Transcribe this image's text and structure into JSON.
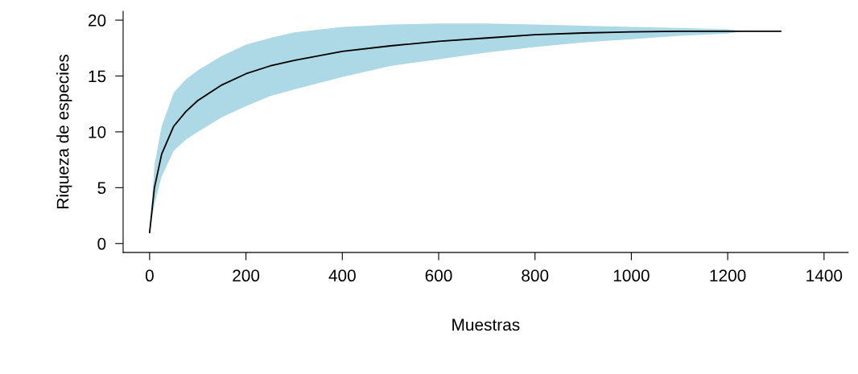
{
  "chart_data": {
    "type": "line",
    "xlabel": "Muestras",
    "ylabel": "Riqueza de especies",
    "x": [
      0,
      10,
      25,
      50,
      75,
      100,
      150,
      200,
      250,
      300,
      400,
      500,
      600,
      700,
      800,
      900,
      1000,
      1100,
      1200,
      1230,
      1310
    ],
    "series": [
      {
        "color": "#000000",
        "values": [
          1,
          5,
          8,
          10.5,
          11.8,
          12.8,
          14.2,
          15.2,
          15.9,
          16.4,
          17.2,
          17.7,
          18.1,
          18.4,
          18.7,
          18.85,
          18.95,
          19,
          19,
          19,
          19
        ],
        "lower": [
          1,
          3.5,
          6,
          8.3,
          9.3,
          10,
          11.3,
          12.3,
          13.2,
          13.8,
          14.9,
          15.9,
          16.5,
          17.1,
          17.6,
          18,
          18.3,
          18.6,
          18.8,
          19,
          null
        ],
        "upper": [
          1,
          7,
          10.5,
          13.5,
          14.7,
          15.5,
          16.8,
          17.8,
          18.4,
          18.9,
          19.4,
          19.6,
          19.7,
          19.7,
          19.6,
          19.5,
          19.4,
          19.3,
          19.2,
          19,
          null
        ]
      }
    ],
    "color": "#add8e6",
    "xlim": [
      -55,
      1450
    ],
    "ylim": [
      -0.8,
      20.8
    ],
    "xticks": [
      0,
      200,
      400,
      600,
      800,
      1000,
      1200,
      1400
    ],
    "yticks": [
      0,
      5,
      10,
      15,
      20
    ],
    "grid": false,
    "legend": false,
    "marker": "none",
    "line_style": "solid"
  }
}
